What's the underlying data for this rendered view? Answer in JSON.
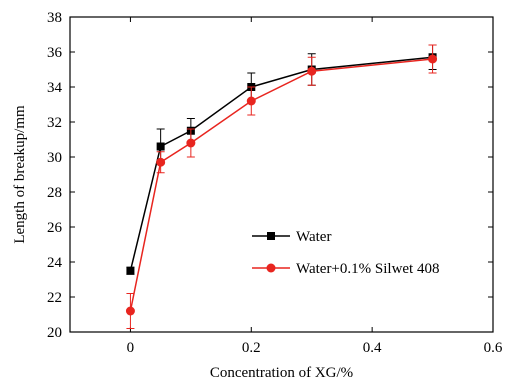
{
  "chart_data": {
    "type": "line",
    "xlabel": "Concentration of XG/%",
    "ylabel": "Length of breakup/mm",
    "xlim": [
      -0.1,
      0.6
    ],
    "ylim": [
      20,
      38
    ],
    "xticks": [
      0,
      0.2,
      0.4,
      0.6
    ],
    "xtick_labels": [
      "0",
      "0.2",
      "0.4",
      "0.6"
    ],
    "yticks": [
      20,
      22,
      24,
      26,
      28,
      30,
      32,
      34,
      36,
      38
    ],
    "ytick_labels": [
      "20",
      "22",
      "24",
      "26",
      "28",
      "30",
      "32",
      "34",
      "36",
      "38"
    ],
    "grid": false,
    "legend_position": "lower-right",
    "series": [
      {
        "name": "Water",
        "color": "#000000",
        "marker": "square",
        "x": [
          0,
          0.05,
          0.1,
          0.2,
          0.3,
          0.5
        ],
        "y": [
          23.5,
          30.6,
          31.5,
          34.0,
          35.0,
          35.7
        ],
        "err": [
          0.2,
          1.0,
          0.7,
          0.8,
          0.9,
          0.7
        ]
      },
      {
        "name": "Water+0.1% Silwet 408",
        "color": "#e8251f",
        "marker": "circle",
        "x": [
          0,
          0.05,
          0.1,
          0.2,
          0.3,
          0.5
        ],
        "y": [
          21.2,
          29.7,
          30.8,
          33.2,
          34.9,
          35.6
        ],
        "err": [
          1.0,
          0.6,
          0.8,
          0.8,
          0.8,
          0.8
        ]
      }
    ]
  }
}
